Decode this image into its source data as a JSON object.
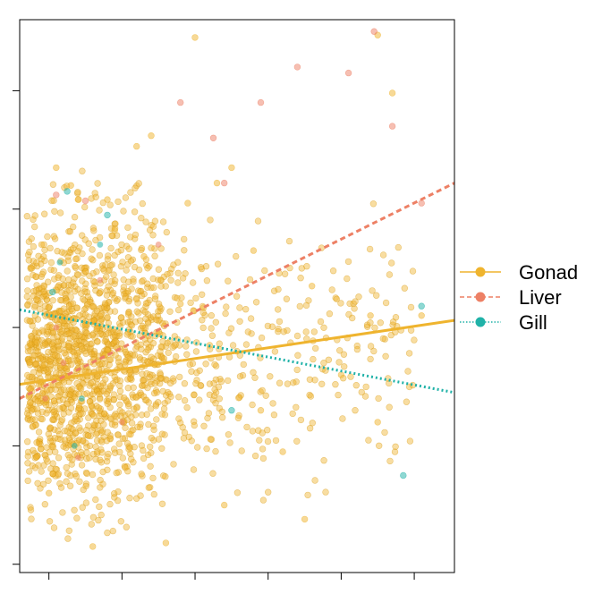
{
  "chart_data": {
    "type": "scatter",
    "title": "",
    "xlabel": "",
    "ylabel": "",
    "xlim": [
      -0.2,
      5.75
    ],
    "ylim": [
      -0.07,
      4.6
    ],
    "x_ticks": [
      0.2,
      1.2,
      2.2,
      3.2,
      4.2,
      5.2
    ],
    "y_ticks": [
      0,
      1,
      2,
      3,
      4
    ],
    "grid": false,
    "legend_position": "right",
    "series": [
      {
        "name": "Gonad",
        "color": "#efb42e",
        "line_style": "solid",
        "fit": {
          "x": [
            -0.2,
            5.75
          ],
          "y": [
            1.52,
            2.06
          ]
        },
        "points": [
          [
            2.2,
            4.45
          ],
          [
            4.7,
            4.47
          ],
          [
            4.9,
            3.98
          ],
          [
            1.6,
            3.62
          ],
          [
            1.4,
            3.53
          ],
          [
            2.7,
            3.35
          ],
          [
            2.5,
            3.22
          ],
          [
            1.0,
            3.08
          ],
          [
            0.6,
            3.08
          ],
          [
            1.1,
            2.82
          ],
          [
            0.3,
            3.35
          ],
          [
            0.5,
            3.2
          ],
          [
            2.1,
            3.05
          ],
          [
            3.0,
            2.65
          ],
          [
            3.8,
            2.35
          ],
          [
            4.6,
            2.1
          ],
          [
            5.3,
            2.1
          ],
          [
            4.2,
            1.6
          ],
          [
            4.7,
            1.2
          ],
          [
            3.4,
            0.95
          ],
          [
            3.7,
            0.38
          ],
          [
            0.8,
            0.15
          ],
          [
            1.8,
            0.18
          ],
          [
            2.6,
            0.5
          ],
          [
            0.2,
            0.6
          ],
          [
            0.1,
            2.7
          ],
          [
            1.5,
            2.6
          ],
          [
            2.0,
            2.2
          ],
          [
            0.7,
            1.6
          ],
          [
            1.3,
            1.1
          ],
          [
            3.1,
            1.3
          ],
          [
            2.4,
            1.85
          ]
        ]
      },
      {
        "name": "Liver",
        "color": "#ed8065",
        "line_style": "dashed",
        "fit": {
          "x": [
            -0.2,
            5.75
          ],
          "y": [
            1.4,
            3.22
          ]
        },
        "points": [
          [
            4.65,
            4.5
          ],
          [
            3.6,
            4.2
          ],
          [
            4.3,
            4.15
          ],
          [
            3.1,
            3.9
          ],
          [
            2.0,
            3.9
          ],
          [
            2.45,
            3.6
          ],
          [
            5.3,
            3.05
          ],
          [
            4.9,
            3.7
          ],
          [
            0.7,
            3.07
          ],
          [
            0.3,
            3.12
          ],
          [
            2.6,
            3.22
          ]
        ]
      },
      {
        "name": "Gill",
        "color": "#20b2a8",
        "line_style": "dotted",
        "fit": {
          "x": [
            -0.2,
            5.75
          ],
          "y": [
            2.15,
            1.45
          ]
        },
        "points": [
          [
            0.45,
            3.15
          ],
          [
            0.25,
            2.3
          ],
          [
            1.0,
            2.95
          ],
          [
            5.3,
            2.18
          ],
          [
            5.05,
            0.75
          ],
          [
            2.7,
            1.3
          ]
        ]
      }
    ]
  }
}
